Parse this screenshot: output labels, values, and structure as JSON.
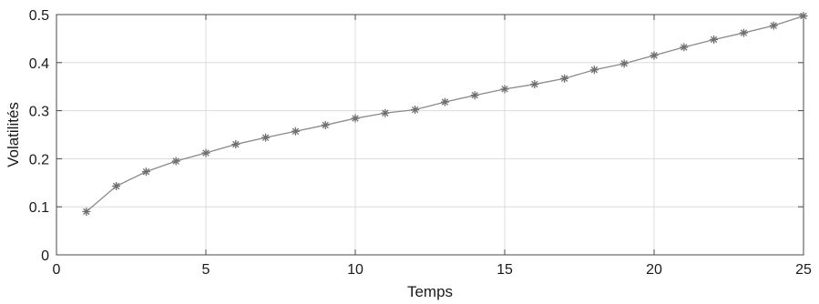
{
  "chart_data": {
    "type": "line",
    "title": "",
    "xlabel": "Temps",
    "ylabel": "Volatilités",
    "xlim": [
      0,
      25
    ],
    "ylim": [
      0,
      0.5
    ],
    "x_ticks": [
      "0",
      "5",
      "10",
      "15",
      "20",
      "25"
    ],
    "y_ticks": [
      "0",
      "0.1",
      "0.2",
      "0.3",
      "0.4",
      "0.5"
    ],
    "grid": true,
    "legend": "none",
    "marker": "asterisk",
    "colors": {
      "line": "#8a8a8a",
      "marker": "#6e6e6e",
      "grid": "#dcdcdc",
      "axis": "#4a4a4a"
    },
    "series": [
      {
        "x": [
          1,
          2,
          3,
          4,
          5,
          6,
          7,
          8,
          9,
          10,
          11,
          12,
          13,
          14,
          15,
          16,
          17,
          18,
          19,
          20,
          21,
          22,
          23,
          24,
          25
        ],
        "values": [
          0.09,
          0.143,
          0.173,
          0.195,
          0.212,
          0.23,
          0.244,
          0.257,
          0.27,
          0.284,
          0.295,
          0.302,
          0.318,
          0.332,
          0.345,
          0.355,
          0.367,
          0.385,
          0.398,
          0.415,
          0.432,
          0.448,
          0.462,
          0.477,
          0.497
        ]
      }
    ]
  }
}
